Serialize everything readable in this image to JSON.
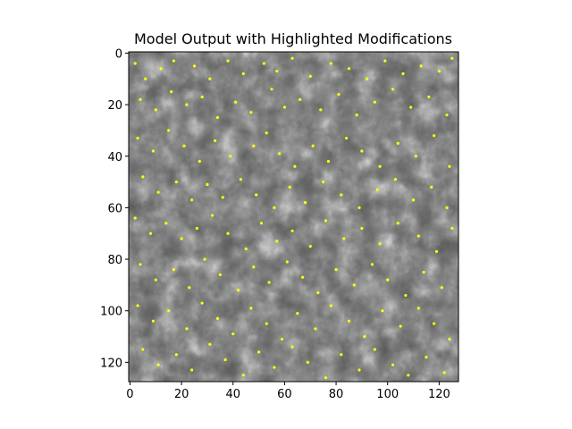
{
  "chart_data": {
    "type": "heatmap",
    "title": "Model Output with Highlighted Modifications",
    "xlabel": "",
    "ylabel": "",
    "xlim": [
      0,
      127
    ],
    "ylim": [
      127,
      0
    ],
    "x_ticks": [
      "0",
      "20",
      "40",
      "60",
      "80",
      "100",
      "120"
    ],
    "y_ticks": [
      "0",
      "20",
      "40",
      "60",
      "80",
      "100",
      "120"
    ],
    "grid": false,
    "colormap": "gray",
    "background_color": "#555555",
    "overlay": {
      "type": "scatter",
      "marker_color": "#ffff00",
      "description_points": "sample of yellow markers (x, y) in pixel units",
      "points": [
        [
          2,
          4
        ],
        [
          6,
          10
        ],
        [
          12,
          6
        ],
        [
          17,
          3
        ],
        [
          25,
          5
        ],
        [
          31,
          10
        ],
        [
          38,
          3
        ],
        [
          44,
          8
        ],
        [
          52,
          4
        ],
        [
          57,
          7
        ],
        [
          63,
          2
        ],
        [
          70,
          9
        ],
        [
          78,
          4
        ],
        [
          85,
          6
        ],
        [
          92,
          10
        ],
        [
          99,
          3
        ],
        [
          106,
          8
        ],
        [
          113,
          5
        ],
        [
          120,
          7
        ],
        [
          125,
          2
        ],
        [
          4,
          18
        ],
        [
          10,
          22
        ],
        [
          16,
          15
        ],
        [
          22,
          20
        ],
        [
          28,
          17
        ],
        [
          34,
          25
        ],
        [
          41,
          19
        ],
        [
          47,
          23
        ],
        [
          55,
          14
        ],
        [
          60,
          21
        ],
        [
          66,
          18
        ],
        [
          74,
          22
        ],
        [
          81,
          16
        ],
        [
          88,
          24
        ],
        [
          95,
          19
        ],
        [
          102,
          14
        ],
        [
          109,
          21
        ],
        [
          116,
          17
        ],
        [
          123,
          24
        ],
        [
          3,
          33
        ],
        [
          9,
          38
        ],
        [
          15,
          30
        ],
        [
          21,
          36
        ],
        [
          27,
          42
        ],
        [
          33,
          34
        ],
        [
          39,
          40
        ],
        [
          48,
          36
        ],
        [
          53,
          31
        ],
        [
          58,
          39
        ],
        [
          64,
          44
        ],
        [
          71,
          36
        ],
        [
          77,
          42
        ],
        [
          84,
          33
        ],
        [
          90,
          38
        ],
        [
          97,
          44
        ],
        [
          104,
          35
        ],
        [
          111,
          40
        ],
        [
          118,
          32
        ],
        [
          124,
          44
        ],
        [
          5,
          48
        ],
        [
          11,
          54
        ],
        [
          18,
          50
        ],
        [
          24,
          57
        ],
        [
          30,
          51
        ],
        [
          36,
          56
        ],
        [
          43,
          49
        ],
        [
          49,
          55
        ],
        [
          56,
          60
        ],
        [
          62,
          52
        ],
        [
          68,
          58
        ],
        [
          75,
          50
        ],
        [
          82,
          55
        ],
        [
          89,
          60
        ],
        [
          96,
          53
        ],
        [
          103,
          49
        ],
        [
          110,
          57
        ],
        [
          117,
          52
        ],
        [
          123,
          60
        ],
        [
          2,
          64
        ],
        [
          8,
          70
        ],
        [
          14,
          66
        ],
        [
          20,
          72
        ],
        [
          26,
          68
        ],
        [
          32,
          63
        ],
        [
          38,
          70
        ],
        [
          45,
          76
        ],
        [
          51,
          66
        ],
        [
          57,
          73
        ],
        [
          63,
          69
        ],
        [
          70,
          75
        ],
        [
          76,
          65
        ],
        [
          83,
          72
        ],
        [
          90,
          68
        ],
        [
          97,
          74
        ],
        [
          104,
          66
        ],
        [
          112,
          71
        ],
        [
          119,
          77
        ],
        [
          125,
          68
        ],
        [
          4,
          82
        ],
        [
          10,
          88
        ],
        [
          17,
          84
        ],
        [
          23,
          91
        ],
        [
          29,
          80
        ],
        [
          35,
          86
        ],
        [
          42,
          92
        ],
        [
          48,
          83
        ],
        [
          54,
          89
        ],
        [
          61,
          81
        ],
        [
          67,
          87
        ],
        [
          73,
          93
        ],
        [
          80,
          84
        ],
        [
          87,
          90
        ],
        [
          94,
          82
        ],
        [
          100,
          88
        ],
        [
          107,
          94
        ],
        [
          114,
          85
        ],
        [
          121,
          91
        ],
        [
          3,
          98
        ],
        [
          9,
          104
        ],
        [
          15,
          100
        ],
        [
          22,
          107
        ],
        [
          28,
          97
        ],
        [
          34,
          103
        ],
        [
          40,
          109
        ],
        [
          47,
          99
        ],
        [
          53,
          105
        ],
        [
          59,
          111
        ],
        [
          65,
          101
        ],
        [
          72,
          107
        ],
        [
          78,
          98
        ],
        [
          85,
          104
        ],
        [
          91,
          110
        ],
        [
          98,
          100
        ],
        [
          105,
          106
        ],
        [
          112,
          99
        ],
        [
          118,
          105
        ],
        [
          124,
          111
        ],
        [
          5,
          115
        ],
        [
          11,
          121
        ],
        [
          18,
          117
        ],
        [
          24,
          123
        ],
        [
          31,
          113
        ],
        [
          37,
          119
        ],
        [
          44,
          125
        ],
        [
          50,
          116
        ],
        [
          56,
          122
        ],
        [
          63,
          114
        ],
        [
          69,
          120
        ],
        [
          76,
          126
        ],
        [
          82,
          117
        ],
        [
          89,
          123
        ],
        [
          95,
          115
        ],
        [
          102,
          121
        ],
        [
          108,
          125
        ],
        [
          115,
          118
        ],
        [
          122,
          124
        ]
      ]
    }
  }
}
